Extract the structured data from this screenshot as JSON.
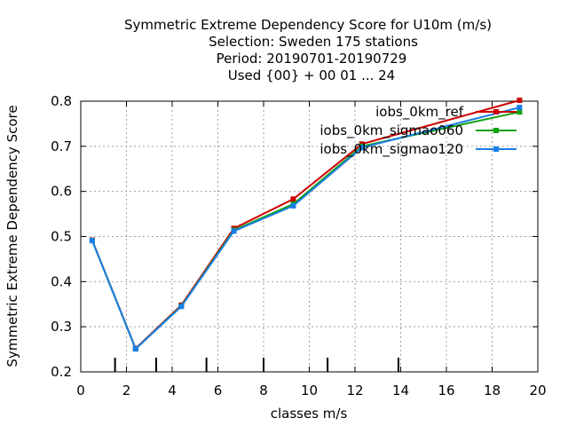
{
  "chart_data": {
    "type": "line",
    "title_lines": [
      "Symmetric Extreme Dependency Score  for U10m (m/s)",
      "Selection: Sweden    175 stations",
      "Period: 20190701-20190729",
      "Used {00} + 00 01 ... 24"
    ],
    "xlabel": "classes m/s",
    "ylabel": "Symmetric Extreme Dependency Score",
    "xlim": [
      0,
      20
    ],
    "ylim": [
      0.2,
      0.8
    ],
    "x_ticks": [
      0,
      2,
      4,
      6,
      8,
      10,
      12,
      14,
      16,
      18,
      20
    ],
    "y_ticks": [
      0.2,
      0.3,
      0.4,
      0.5,
      0.6,
      0.7,
      0.8
    ],
    "x_tick_labels": [
      "0",
      "2",
      "4",
      "6",
      "8",
      "10",
      "12",
      "14",
      "16",
      "18",
      "20"
    ],
    "y_tick_labels": [
      "0.2",
      "0.3",
      "0.4",
      "0.5",
      "0.6",
      "0.7",
      "0.8"
    ],
    "class_limits": [
      1.5,
      3.3,
      5.5,
      8.0,
      10.8,
      13.9
    ],
    "grid": true,
    "legend_position": "top-right",
    "series": [
      {
        "name": "iobs_0km_ref",
        "color": "#cc0000",
        "x": [
          0.5,
          2.4,
          4.4,
          6.7,
          9.3,
          12.3,
          19.2
        ],
        "y": [
          0.492,
          0.252,
          0.348,
          0.518,
          0.583,
          0.705,
          0.802
        ]
      },
      {
        "name": "iobs_0km_sigmao060",
        "color": "#11a011",
        "x": [
          0.5,
          2.4,
          4.4,
          6.7,
          9.3,
          12.3,
          19.2
        ],
        "y": [
          0.491,
          0.251,
          0.346,
          0.514,
          0.572,
          0.7,
          0.776
        ]
      },
      {
        "name": "iobs_0km_sigmao120",
        "color": "#1a7fe6",
        "x": [
          0.5,
          2.4,
          4.4,
          6.7,
          9.3,
          12.3,
          19.2
        ],
        "y": [
          0.491,
          0.251,
          0.345,
          0.512,
          0.568,
          0.697,
          0.786
        ]
      }
    ]
  }
}
